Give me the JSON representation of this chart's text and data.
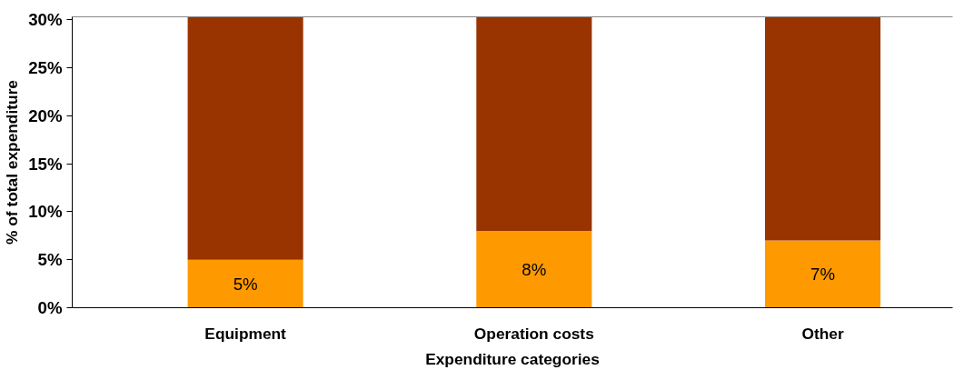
{
  "chart_data": {
    "type": "bar",
    "stacked": true,
    "xlabel": "Expenditure categories",
    "ylabel": "% of total expenditure",
    "categories": [
      "Equipment",
      "Operation costs",
      "Other"
    ],
    "series": [
      {
        "color": "#ff9900",
        "values": [
          5,
          8,
          7
        ],
        "value_labels": [
          "5%",
          "8%",
          "7%"
        ]
      },
      {
        "color": "#993300",
        "values": [
          25.3,
          22.3,
          23.3
        ]
      }
    ],
    "ylim": [
      0,
      30.3
    ],
    "yticks": [
      {
        "value": 0,
        "label": "0%"
      },
      {
        "value": 5,
        "label": "5%"
      },
      {
        "value": 10,
        "label": "10%"
      },
      {
        "value": 15,
        "label": "15%"
      },
      {
        "value": 20,
        "label": "20%"
      },
      {
        "value": 25,
        "label": "25%"
      },
      {
        "value": 30,
        "label": "30%"
      }
    ],
    "grid": false
  }
}
